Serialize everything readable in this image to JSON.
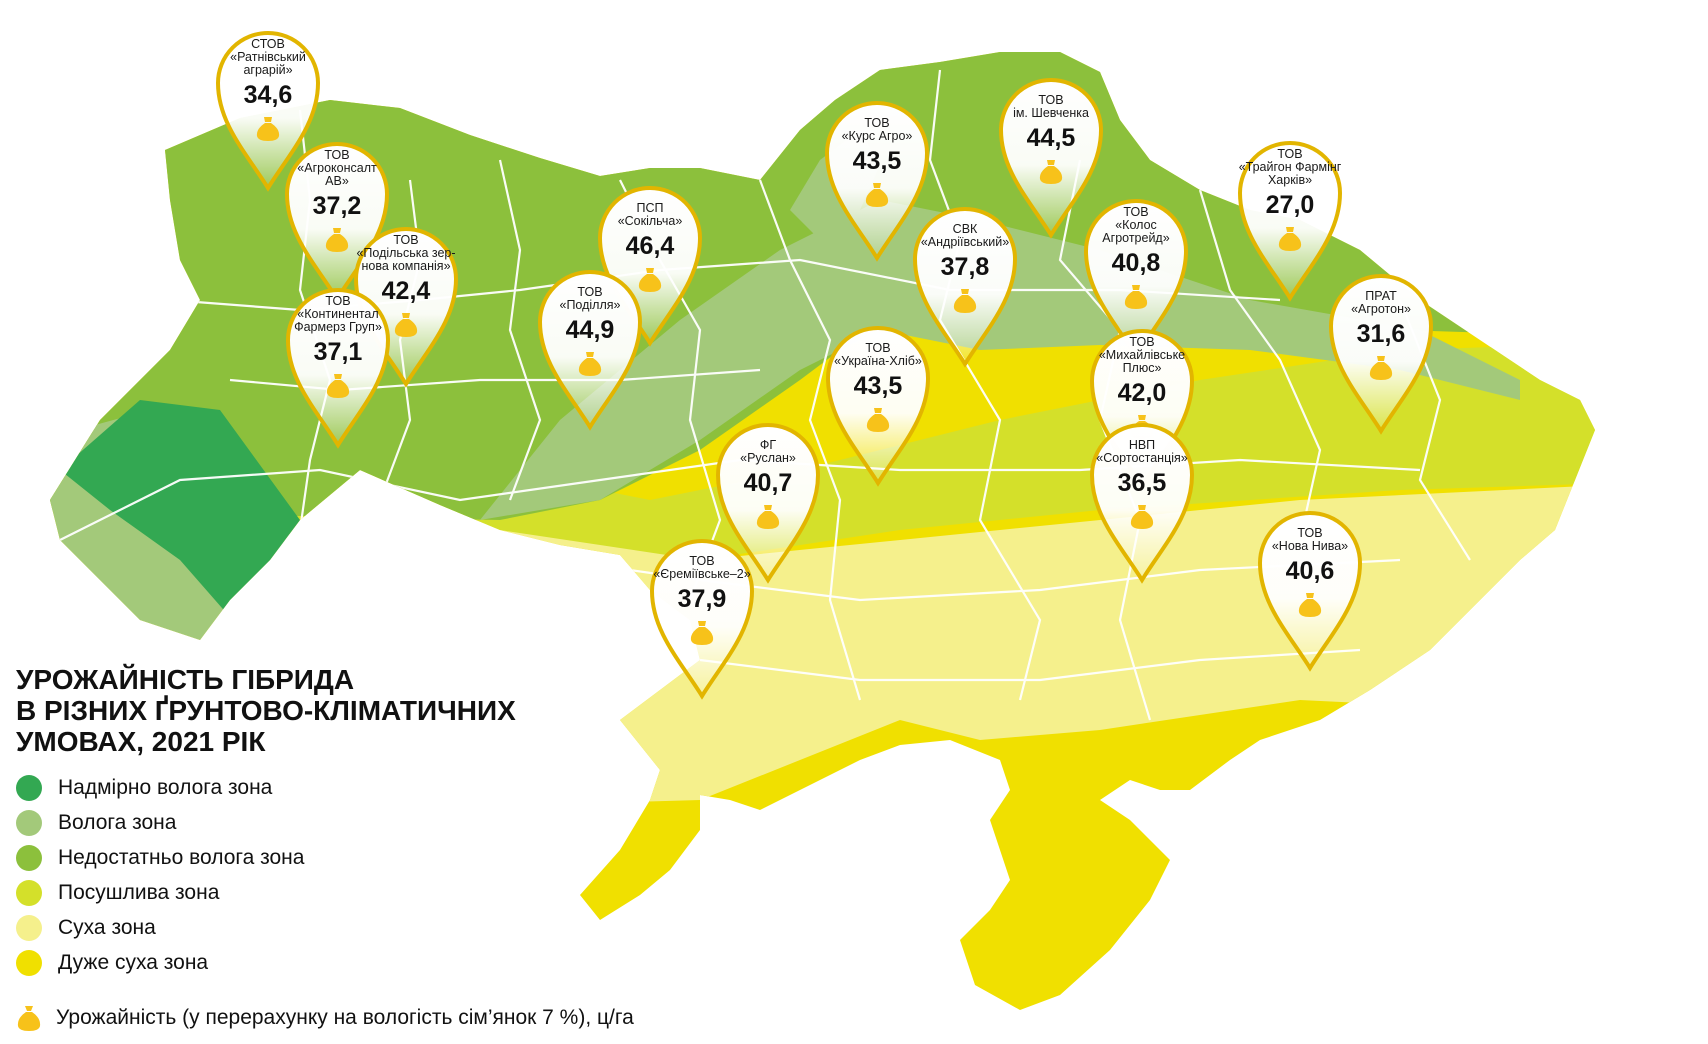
{
  "title": {
    "line1": "УРОЖАЙНІСТЬ ГІБРИДА",
    "line2": "В РІЗНИХ ҐРУНТОВО-КЛІМАТИЧНИХ",
    "line3": "УМОВАХ, 2021 РІК"
  },
  "legend": [
    {
      "label": "Надмірно волога зона",
      "color": "#33a852"
    },
    {
      "label": "Волога зона",
      "color": "#a3c97a"
    },
    {
      "label": "Недостатньо волога зона",
      "color": "#8cc03c"
    },
    {
      "label": "Посушлива зона",
      "color": "#d4e02a"
    },
    {
      "label": "Суха зона",
      "color": "#f5f08c"
    },
    {
      "label": "Дуже суха зона",
      "color": "#f0e000"
    }
  ],
  "yield_note": "Урожайність (у перерахунку на вологість сім’янок 7 %), ц/га",
  "colors": {
    "pin_border": "#e2b500",
    "bag": "#f7c21a",
    "region_border": "#ffffff"
  },
  "farms": [
    {
      "lines": [
        "СТОВ",
        "«Ратнівський",
        "аграрій»"
      ],
      "value": "34,6"
    },
    {
      "lines": [
        "ТОВ",
        "«Агроконсалт",
        "АВ»"
      ],
      "value": "37,2"
    },
    {
      "lines": [
        "ТОВ",
        "«Подільська зер-",
        "нова компанія»"
      ],
      "value": "42,4"
    },
    {
      "lines": [
        "ТОВ",
        "«Континентал",
        "Фармерз Груп»"
      ],
      "value": "37,1"
    },
    {
      "lines": [
        "ПСП",
        "«Сокільча»"
      ],
      "value": "46,4"
    },
    {
      "lines": [
        "ТОВ",
        "«Поділля»"
      ],
      "value": "44,9"
    },
    {
      "lines": [
        "ТОВ",
        "«Курс Агро»"
      ],
      "value": "43,5"
    },
    {
      "lines": [
        "ТОВ",
        "ім. Шевченка"
      ],
      "value": "44,5"
    },
    {
      "lines": [
        "СВК",
        "«Андріївський»"
      ],
      "value": "37,8"
    },
    {
      "lines": [
        "ТОВ",
        "«Колос",
        "Агротрейд»"
      ],
      "value": "40,8"
    },
    {
      "lines": [
        "ТОВ",
        "«Трайгон Фармінг",
        "Харків»"
      ],
      "value": "27,0"
    },
    {
      "lines": [
        "ПРАТ",
        "«Агротон»"
      ],
      "value": "31,6"
    },
    {
      "lines": [
        "ТОВ",
        "«Україна-Хліб»"
      ],
      "value": "43,5"
    },
    {
      "lines": [
        "ТОВ",
        "«Михайлівське",
        "Плюс»"
      ],
      "value": "42,0"
    },
    {
      "lines": [
        "ФГ",
        "«Руслан»"
      ],
      "value": "40,7"
    },
    {
      "lines": [
        "НВП",
        "«Сортостанція»"
      ],
      "value": "36,5"
    },
    {
      "lines": [
        "ТОВ",
        "«Нова Нива»"
      ],
      "value": "40,6"
    },
    {
      "lines": [
        "ТОВ",
        "«Єреміївське–2»"
      ],
      "value": "37,9"
    }
  ]
}
